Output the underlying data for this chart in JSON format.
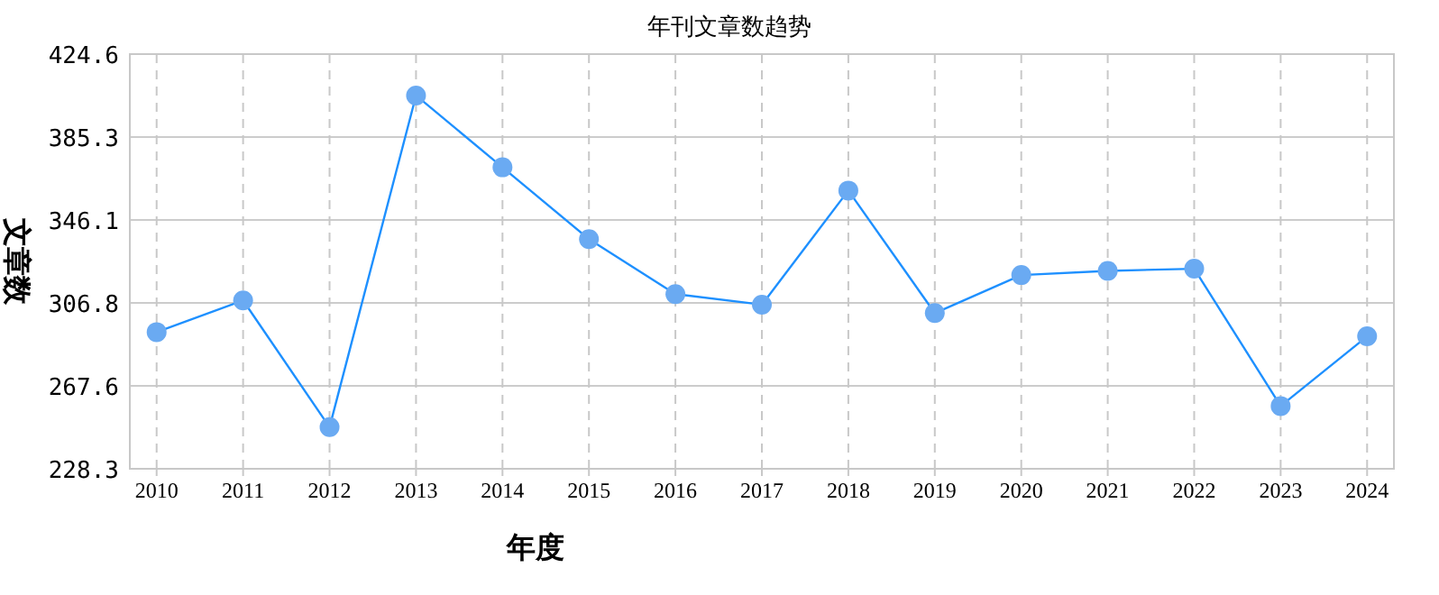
{
  "chart_data": {
    "type": "line",
    "title": "年刊文章数趋势",
    "xlabel": "年度",
    "ylabel": "文章数",
    "categories": [
      "2010",
      "2011",
      "2012",
      "2013",
      "2014",
      "2015",
      "2016",
      "2017",
      "2018",
      "2019",
      "2020",
      "2021",
      "2022",
      "2023",
      "2024"
    ],
    "series": [
      {
        "color": "#1e90ff",
        "values": [
          293,
          308,
          248,
          405,
          371,
          337,
          311,
          306,
          360,
          302,
          320,
          322,
          323,
          258,
          291
        ]
      }
    ],
    "ylim": [
      228.3,
      424.6
    ],
    "yticks": [
      228.3,
      267.6,
      306.8,
      346.1,
      385.3,
      424.6
    ],
    "grid": true,
    "marker": "circle",
    "line_style": "solid"
  }
}
